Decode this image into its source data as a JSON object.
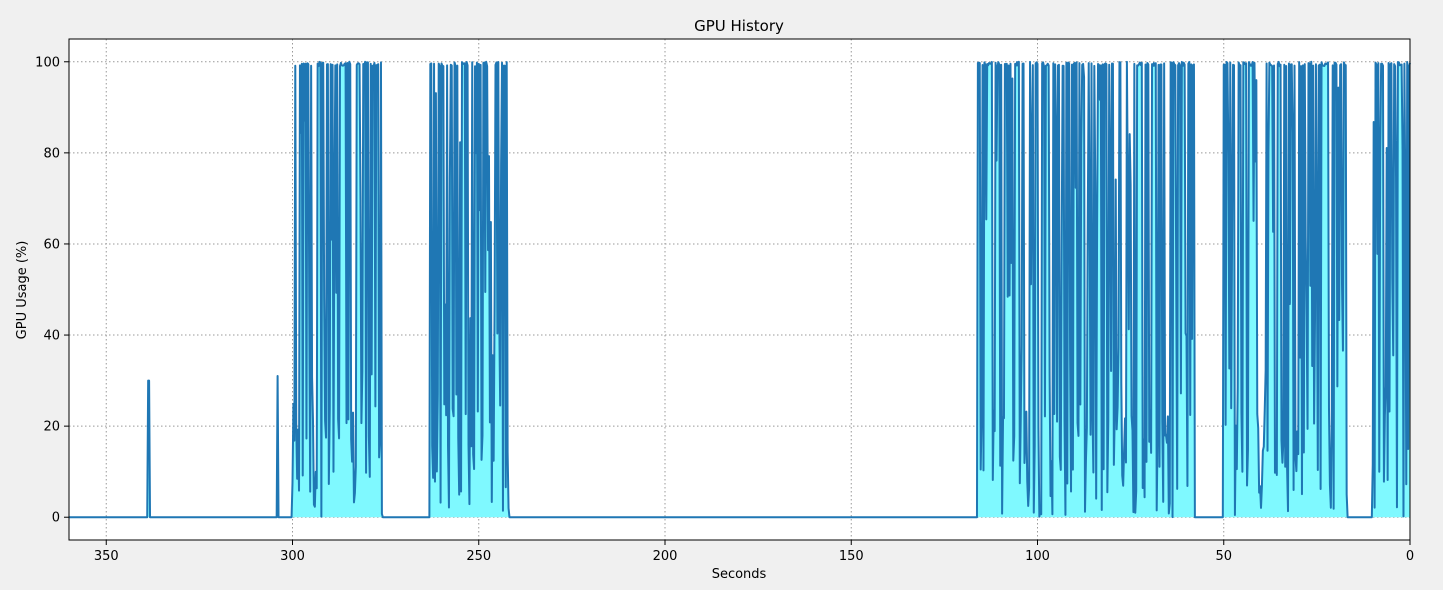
{
  "chart_data": {
    "type": "area",
    "title": "GPU History",
    "xlabel": "Seconds",
    "ylabel": "GPU Usage (%)",
    "x_reversed": true,
    "xlim": [
      360,
      0
    ],
    "ylim": [
      -5,
      105
    ],
    "xticks": [
      350,
      300,
      250,
      200,
      150,
      100,
      50,
      0
    ],
    "yticks": [
      0,
      20,
      40,
      60,
      80,
      100
    ],
    "grid": true,
    "colors": {
      "line": "#1f77b4",
      "fill": "#7ff9ff",
      "background": "#ffffff",
      "figure": "#f0f0f0"
    },
    "series": [
      {
        "spikes": [
          {
            "x": 338.6,
            "y": 30
          },
          {
            "x": 304,
            "y": 31
          }
        ],
        "active_segments": [
          {
            "start": 300,
            "end": 276
          },
          {
            "start": 263,
            "end": 242
          },
          {
            "start": 116,
            "end": 58
          },
          {
            "start": 50,
            "end": 17
          },
          {
            "start": 10,
            "end": 0
          }
        ]
      }
    ]
  }
}
